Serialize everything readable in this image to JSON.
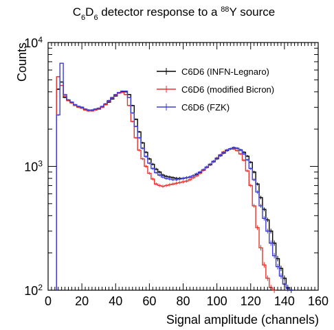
{
  "chart_data": {
    "type": "line",
    "title": {
      "parts": [
        {
          "text": "C",
          "pos": "normal"
        },
        {
          "text": "6",
          "pos": "sub"
        },
        {
          "text": "D",
          "pos": "normal"
        },
        {
          "text": "6",
          "pos": "sub"
        },
        {
          "text": " detector response to a ",
          "pos": "normal"
        },
        {
          "text": "88",
          "pos": "sup"
        },
        {
          "text": "Y source",
          "pos": "normal"
        }
      ]
    },
    "xlabel": "Signal amplitude (channels)",
    "ylabel": "Counts",
    "xlim": [
      0,
      160
    ],
    "ylim": [
      100,
      10000
    ],
    "yscale": "log",
    "xticks": [
      0,
      20,
      40,
      60,
      80,
      100,
      120,
      140,
      160
    ],
    "yticks": [
      {
        "value": 100,
        "base": "10",
        "exp": "2"
      },
      {
        "value": 1000,
        "base": "10",
        "exp": "3"
      },
      {
        "value": 10000,
        "base": "10",
        "exp": "4"
      }
    ],
    "grid": false,
    "legend_position": "top-right",
    "bin_width": 2,
    "series": [
      {
        "name": "C6D6 (INFN-Legnaro)",
        "color": "#000000",
        "x": [
          6,
          8,
          10,
          12,
          14,
          16,
          18,
          20,
          22,
          24,
          26,
          28,
          30,
          32,
          34,
          36,
          38,
          40,
          42,
          44,
          46,
          48,
          50,
          52,
          54,
          56,
          58,
          60,
          62,
          64,
          66,
          68,
          70,
          72,
          74,
          76,
          78,
          80,
          82,
          84,
          86,
          88,
          90,
          92,
          94,
          96,
          98,
          100,
          102,
          104,
          106,
          108,
          110,
          112,
          114,
          116,
          118,
          120,
          122,
          124,
          126,
          128,
          130,
          132,
          134,
          136,
          138,
          140,
          142,
          144
        ],
        "y": [
          4200,
          4800,
          3600,
          3400,
          3300,
          3150,
          3050,
          3000,
          2900,
          2850,
          2850,
          2900,
          2900,
          3000,
          3150,
          3300,
          3500,
          3700,
          3900,
          4000,
          4000,
          3800,
          3100,
          2400,
          1900,
          1550,
          1300,
          1150,
          1040,
          950,
          900,
          850,
          830,
          820,
          810,
          800,
          800,
          800,
          810,
          820,
          840,
          860,
          890,
          930,
          980,
          1030,
          1090,
          1150,
          1220,
          1280,
          1340,
          1380,
          1410,
          1400,
          1360,
          1300,
          1210,
          1080,
          900,
          720,
          560,
          450,
          370,
          300,
          240,
          180,
          150,
          125,
          105,
          100
        ]
      },
      {
        "name": "C6D6 (modified Bicron)",
        "color": "#e8302a",
        "x": [
          6,
          8,
          10,
          12,
          14,
          16,
          18,
          20,
          22,
          24,
          26,
          28,
          30,
          32,
          34,
          36,
          38,
          40,
          42,
          44,
          46,
          48,
          50,
          52,
          54,
          56,
          58,
          60,
          62,
          64,
          66,
          68,
          70,
          72,
          74,
          76,
          78,
          80,
          82,
          84,
          86,
          88,
          90,
          92,
          94,
          96,
          98,
          100,
          102,
          104,
          106,
          108,
          110,
          112,
          114,
          116,
          118,
          120,
          122,
          124,
          126,
          128,
          130,
          132,
          134
        ],
        "y": [
          5300,
          4500,
          3700,
          3400,
          3250,
          3100,
          3000,
          2950,
          2850,
          2800,
          2800,
          2850,
          2900,
          3000,
          3150,
          3350,
          3550,
          3750,
          3900,
          3950,
          3800,
          3100,
          2300,
          1700,
          1350,
          1150,
          1000,
          880,
          790,
          720,
          700,
          690,
          700,
          710,
          720,
          730,
          740,
          750,
          760,
          780,
          810,
          840,
          880,
          930,
          980,
          1040,
          1100,
          1170,
          1240,
          1310,
          1360,
          1380,
          1380,
          1340,
          1260,
          1120,
          920,
          700,
          480,
          320,
          220,
          160,
          125,
          105,
          100
        ]
      },
      {
        "name": "C6D6 (FZK)",
        "color": "#3a3ad8",
        "x": [
          6,
          8,
          10,
          12,
          14,
          16,
          18,
          20,
          22,
          24,
          26,
          28,
          30,
          32,
          34,
          36,
          38,
          40,
          42,
          44,
          46,
          48,
          50,
          52,
          54,
          56,
          58,
          60,
          62,
          64,
          66,
          68,
          70,
          72,
          74,
          76,
          78,
          80,
          82,
          84,
          86,
          88,
          90,
          92,
          94,
          96,
          98,
          100,
          102,
          104,
          106,
          108,
          110,
          112,
          114,
          116,
          118,
          120,
          122,
          124,
          126,
          128,
          130,
          132,
          134,
          136,
          138,
          140,
          142,
          144
        ],
        "y": [
          2600,
          6800,
          3800,
          3450,
          3300,
          3150,
          3050,
          3000,
          2900,
          2850,
          2850,
          2900,
          2950,
          3050,
          3200,
          3400,
          3600,
          3800,
          3950,
          4050,
          4050,
          3600,
          2700,
          2100,
          1700,
          1400,
          1200,
          1060,
          960,
          890,
          850,
          820,
          800,
          790,
          780,
          780,
          790,
          800,
          810,
          820,
          840,
          870,
          900,
          940,
          990,
          1040,
          1100,
          1160,
          1230,
          1290,
          1350,
          1390,
          1420,
          1400,
          1350,
          1260,
          1130,
          960,
          780,
          620,
          480,
          380,
          300,
          240,
          190,
          155,
          130,
          112,
          103,
          100
        ]
      }
    ]
  }
}
